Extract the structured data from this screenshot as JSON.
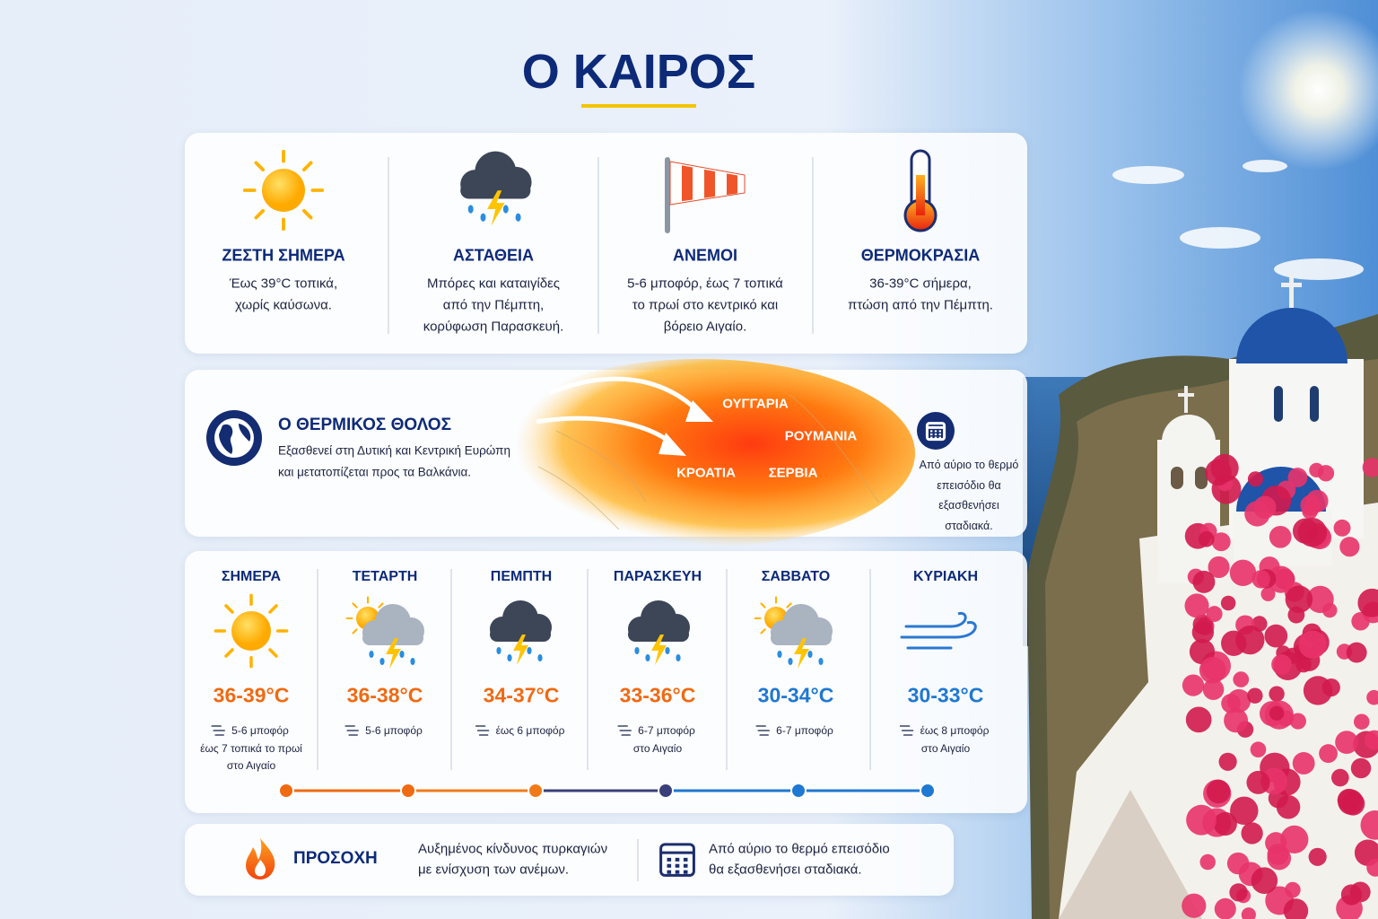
{
  "header": {
    "title": "Ο ΚΑΙΡΟΣ"
  },
  "highlights": [
    {
      "title": "ΖΕΣΤΗ ΣΗΜΕΡΑ",
      "text": [
        "Έως 39°C τοπικά,",
        "χωρίς καύσωνα."
      ]
    },
    {
      "title": "ΑΣΤΑΘΕΙΑ",
      "text": [
        "Μπόρες και καταιγίδες",
        "από την Πέμπτη,",
        "κορύφωση Παρασκευή."
      ]
    },
    {
      "title": "ΑΝΕΜΟΙ",
      "text": [
        "5-6 μποφόρ, έως 7 τοπικά",
        "το πρωί στο κεντρικό και",
        "βόρειο Αιγαίο."
      ]
    },
    {
      "title": "ΘΕΡΜΟΚΡΑΣΙΑ",
      "text": [
        "36-39°C σήμερα,",
        "πτώση από την Πέμπτη."
      ]
    }
  ],
  "heat_dome": {
    "title": "Ο ΘΕΡΜΙΚΟΣ ΘΟΛΟΣ",
    "text": [
      "Εξασθενεί στη Δυτική και Κεντρική Ευρώπη",
      "και μετατοπίζεται προς τα Βαλκάνια."
    ],
    "labels": [
      "ΟΥΓΓΑΡΙΑ",
      "ΡΟΥΜΑΝΙΑ",
      "ΚΡΟΑΤΙΑ",
      "ΣΕΡΒΙΑ"
    ],
    "note": [
      "Από αύριο το θερμό",
      "επεισόδιο θα",
      "εξασθενήσει",
      "σταδιακά."
    ]
  },
  "forecast": [
    {
      "day": "ΣΗΜΕΡΑ",
      "temp": "36-39°C",
      "wind": [
        "5-6 μποφόρ",
        "έως 7 τοπικά το πρωί",
        "στο Αιγαίο"
      ],
      "color": "#f06a12",
      "dot_color": "#f06a12"
    },
    {
      "day": "ΤΕΤΑΡΤΗ",
      "temp": "36-38°C",
      "wind": [
        "5-6 μποφόρ"
      ],
      "color": "#f06a12",
      "dot_color": "#f06a12"
    },
    {
      "day": "ΠΕΜΠΤΗ",
      "temp": "34-37°C",
      "wind": [
        "έως 6 μποφόρ"
      ],
      "color": "#f06a12",
      "dot_color": "#f07a1a"
    },
    {
      "day": "ΠΑΡΑΣΚΕΥΗ",
      "temp": "33-36°C",
      "wind": [
        "6-7 μποφόρ",
        "στο Αιγαίο"
      ],
      "color": "#f06a12",
      "dot_color": "#3a3f7a"
    },
    {
      "day": "ΣΑΒΒΑΤΟ",
      "temp": "30-34°C",
      "wind": [
        "6-7 μποφόρ"
      ],
      "color": "#1f78d1",
      "dot_color": "#1f78d1"
    },
    {
      "day": "ΚΥΡΙΑΚΗ",
      "temp": "30-33°C",
      "wind": [
        "έως 8 μποφόρ",
        "στο Αιγαίο"
      ],
      "color": "#1f78d1",
      "dot_color": "#1f78d1"
    }
  ],
  "footer": {
    "warning_title": "ΠΡΟΣΟΧΗ",
    "warning_text": [
      "Αυξημένος κίνδυνος πυρκαγιών",
      "με ενίσχυση των ανέμων."
    ],
    "note": [
      "Από αύριο το θερμό επεισόδιο",
      "θα εξασθενήσει σταδιακά."
    ]
  }
}
